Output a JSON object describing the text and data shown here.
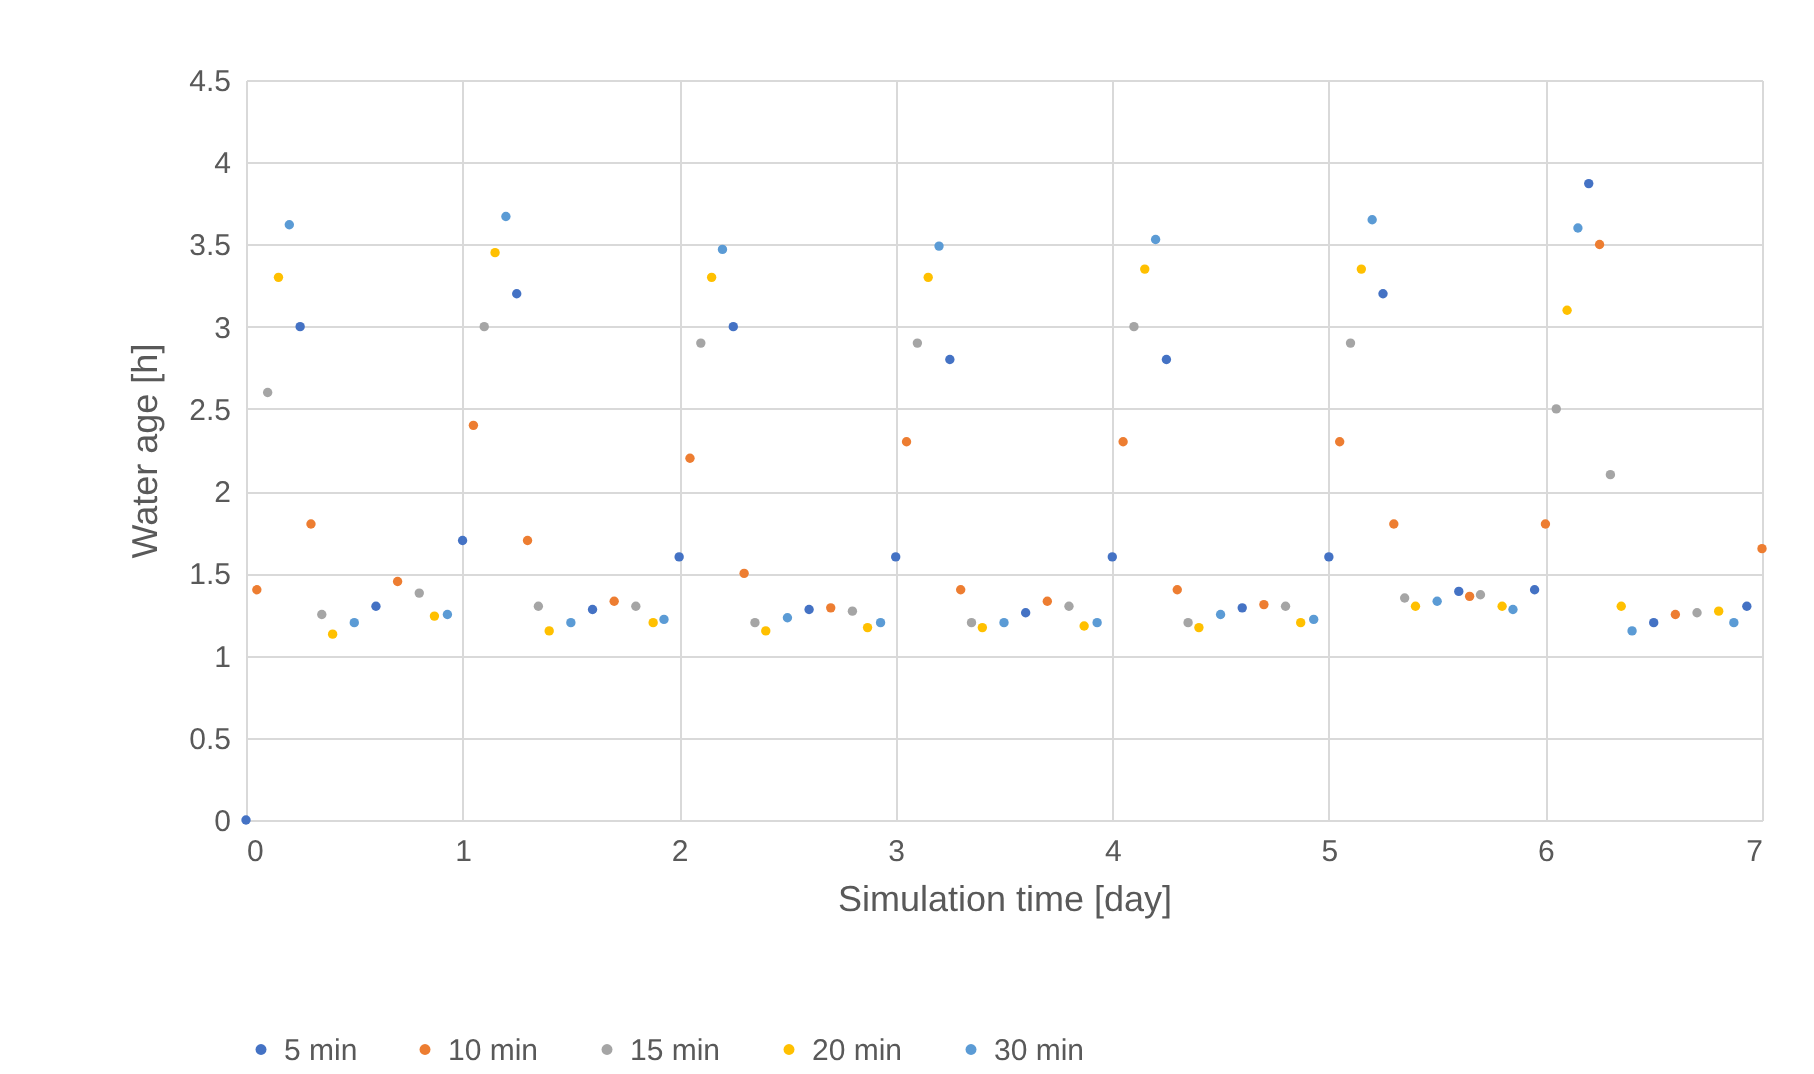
{
  "chart_data": {
    "type": "scatter",
    "xlabel": "Simulation time [day]",
    "ylabel": "Water age [h]",
    "xlim": [
      0,
      7
    ],
    "xticks": [
      0,
      1,
      2,
      3,
      4,
      5,
      6,
      7
    ],
    "ylim": [
      0,
      4.5
    ],
    "yticks": [
      0,
      0.5,
      1,
      1.5,
      2,
      2.5,
      3,
      3.5,
      4,
      4.5
    ],
    "grid": true,
    "legend": "bottom",
    "marker": "circle",
    "series": [
      {
        "name": "5 min",
        "color": "#4472c4",
        "x": [
          0,
          0.25,
          0.6,
          1.0,
          1.25,
          1.6,
          2.0,
          2.25,
          2.6,
          3.0,
          3.25,
          3.6,
          4.0,
          4.25,
          4.6,
          5.0,
          5.25,
          5.6,
          5.95,
          6.2,
          6.5,
          6.93
        ],
        "values": [
          0,
          3.0,
          1.3,
          1.7,
          3.2,
          1.28,
          1.6,
          3.0,
          1.28,
          1.6,
          2.8,
          1.26,
          1.6,
          2.8,
          1.29,
          1.6,
          3.2,
          1.39,
          1.4,
          3.87,
          1.2,
          1.3
        ]
      },
      {
        "name": "10 min",
        "color": "#ed7d31",
        "x": [
          0.05,
          0.3,
          0.7,
          1.05,
          1.3,
          1.7,
          2.05,
          2.3,
          2.7,
          3.05,
          3.3,
          3.7,
          4.05,
          4.3,
          4.7,
          5.05,
          5.3,
          5.65,
          6.0,
          6.25,
          6.6,
          7.0
        ],
        "values": [
          1.4,
          1.8,
          1.45,
          2.4,
          1.7,
          1.33,
          2.2,
          1.5,
          1.29,
          2.3,
          1.4,
          1.33,
          2.3,
          1.4,
          1.31,
          2.3,
          1.8,
          1.36,
          1.8,
          3.5,
          1.25,
          1.65
        ]
      },
      {
        "name": "15 min",
        "color": "#a5a5a5",
        "x": [
          0.1,
          0.35,
          0.8,
          1.1,
          1.35,
          1.8,
          2.1,
          2.35,
          2.8,
          3.1,
          3.35,
          3.8,
          4.1,
          4.35,
          4.8,
          5.1,
          5.35,
          5.7,
          6.05,
          6.3,
          6.7
        ],
        "values": [
          2.6,
          1.25,
          1.38,
          3.0,
          1.3,
          1.3,
          2.9,
          1.2,
          1.27,
          2.9,
          1.2,
          1.3,
          3.0,
          1.2,
          1.3,
          2.9,
          1.35,
          1.37,
          2.5,
          2.1,
          1.26
        ]
      },
      {
        "name": "20 min",
        "color": "#ffc000",
        "x": [
          0.15,
          0.4,
          0.87,
          1.15,
          1.4,
          1.88,
          2.15,
          2.4,
          2.87,
          3.15,
          3.4,
          3.87,
          4.15,
          4.4,
          4.87,
          5.15,
          5.4,
          5.8,
          6.1,
          6.35,
          6.8
        ],
        "values": [
          3.3,
          1.13,
          1.24,
          3.45,
          1.15,
          1.2,
          3.3,
          1.15,
          1.17,
          3.3,
          1.17,
          1.18,
          3.35,
          1.17,
          1.2,
          3.35,
          1.3,
          1.3,
          3.1,
          1.3,
          1.27
        ]
      },
      {
        "name": "30 min",
        "color": "#5b9bd5",
        "x": [
          0.2,
          0.5,
          0.93,
          1.2,
          1.5,
          1.93,
          2.2,
          2.5,
          2.93,
          3.2,
          3.5,
          3.93,
          4.2,
          4.5,
          4.93,
          5.2,
          5.5,
          5.85,
          6.15,
          6.4,
          6.87
        ],
        "values": [
          3.62,
          1.2,
          1.25,
          3.67,
          1.2,
          1.22,
          3.47,
          1.23,
          1.2,
          3.49,
          1.2,
          1.2,
          3.53,
          1.25,
          1.22,
          3.65,
          1.33,
          1.28,
          3.6,
          1.15,
          1.2
        ]
      }
    ]
  }
}
